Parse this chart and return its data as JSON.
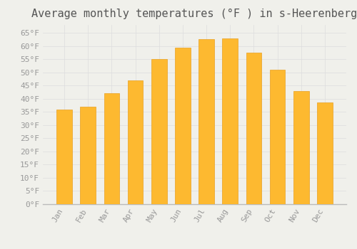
{
  "title": "Average monthly temperatures (°F ) in s-Heerenberg",
  "months": [
    "Jan",
    "Feb",
    "Mar",
    "Apr",
    "May",
    "Jun",
    "Jul",
    "Aug",
    "Sep",
    "Oct",
    "Nov",
    "Dec"
  ],
  "values": [
    36,
    37,
    42,
    47,
    55,
    59.5,
    62.5,
    63,
    57.5,
    51,
    43,
    38.5
  ],
  "bar_color": "#FDB930",
  "bar_edge_color": "#E8A020",
  "background_color": "#F0F0EB",
  "grid_color": "#DDDDDD",
  "ylim": [
    0,
    68
  ],
  "ytick_step": 5,
  "title_fontsize": 11,
  "tick_fontsize": 8,
  "font_family": "monospace"
}
